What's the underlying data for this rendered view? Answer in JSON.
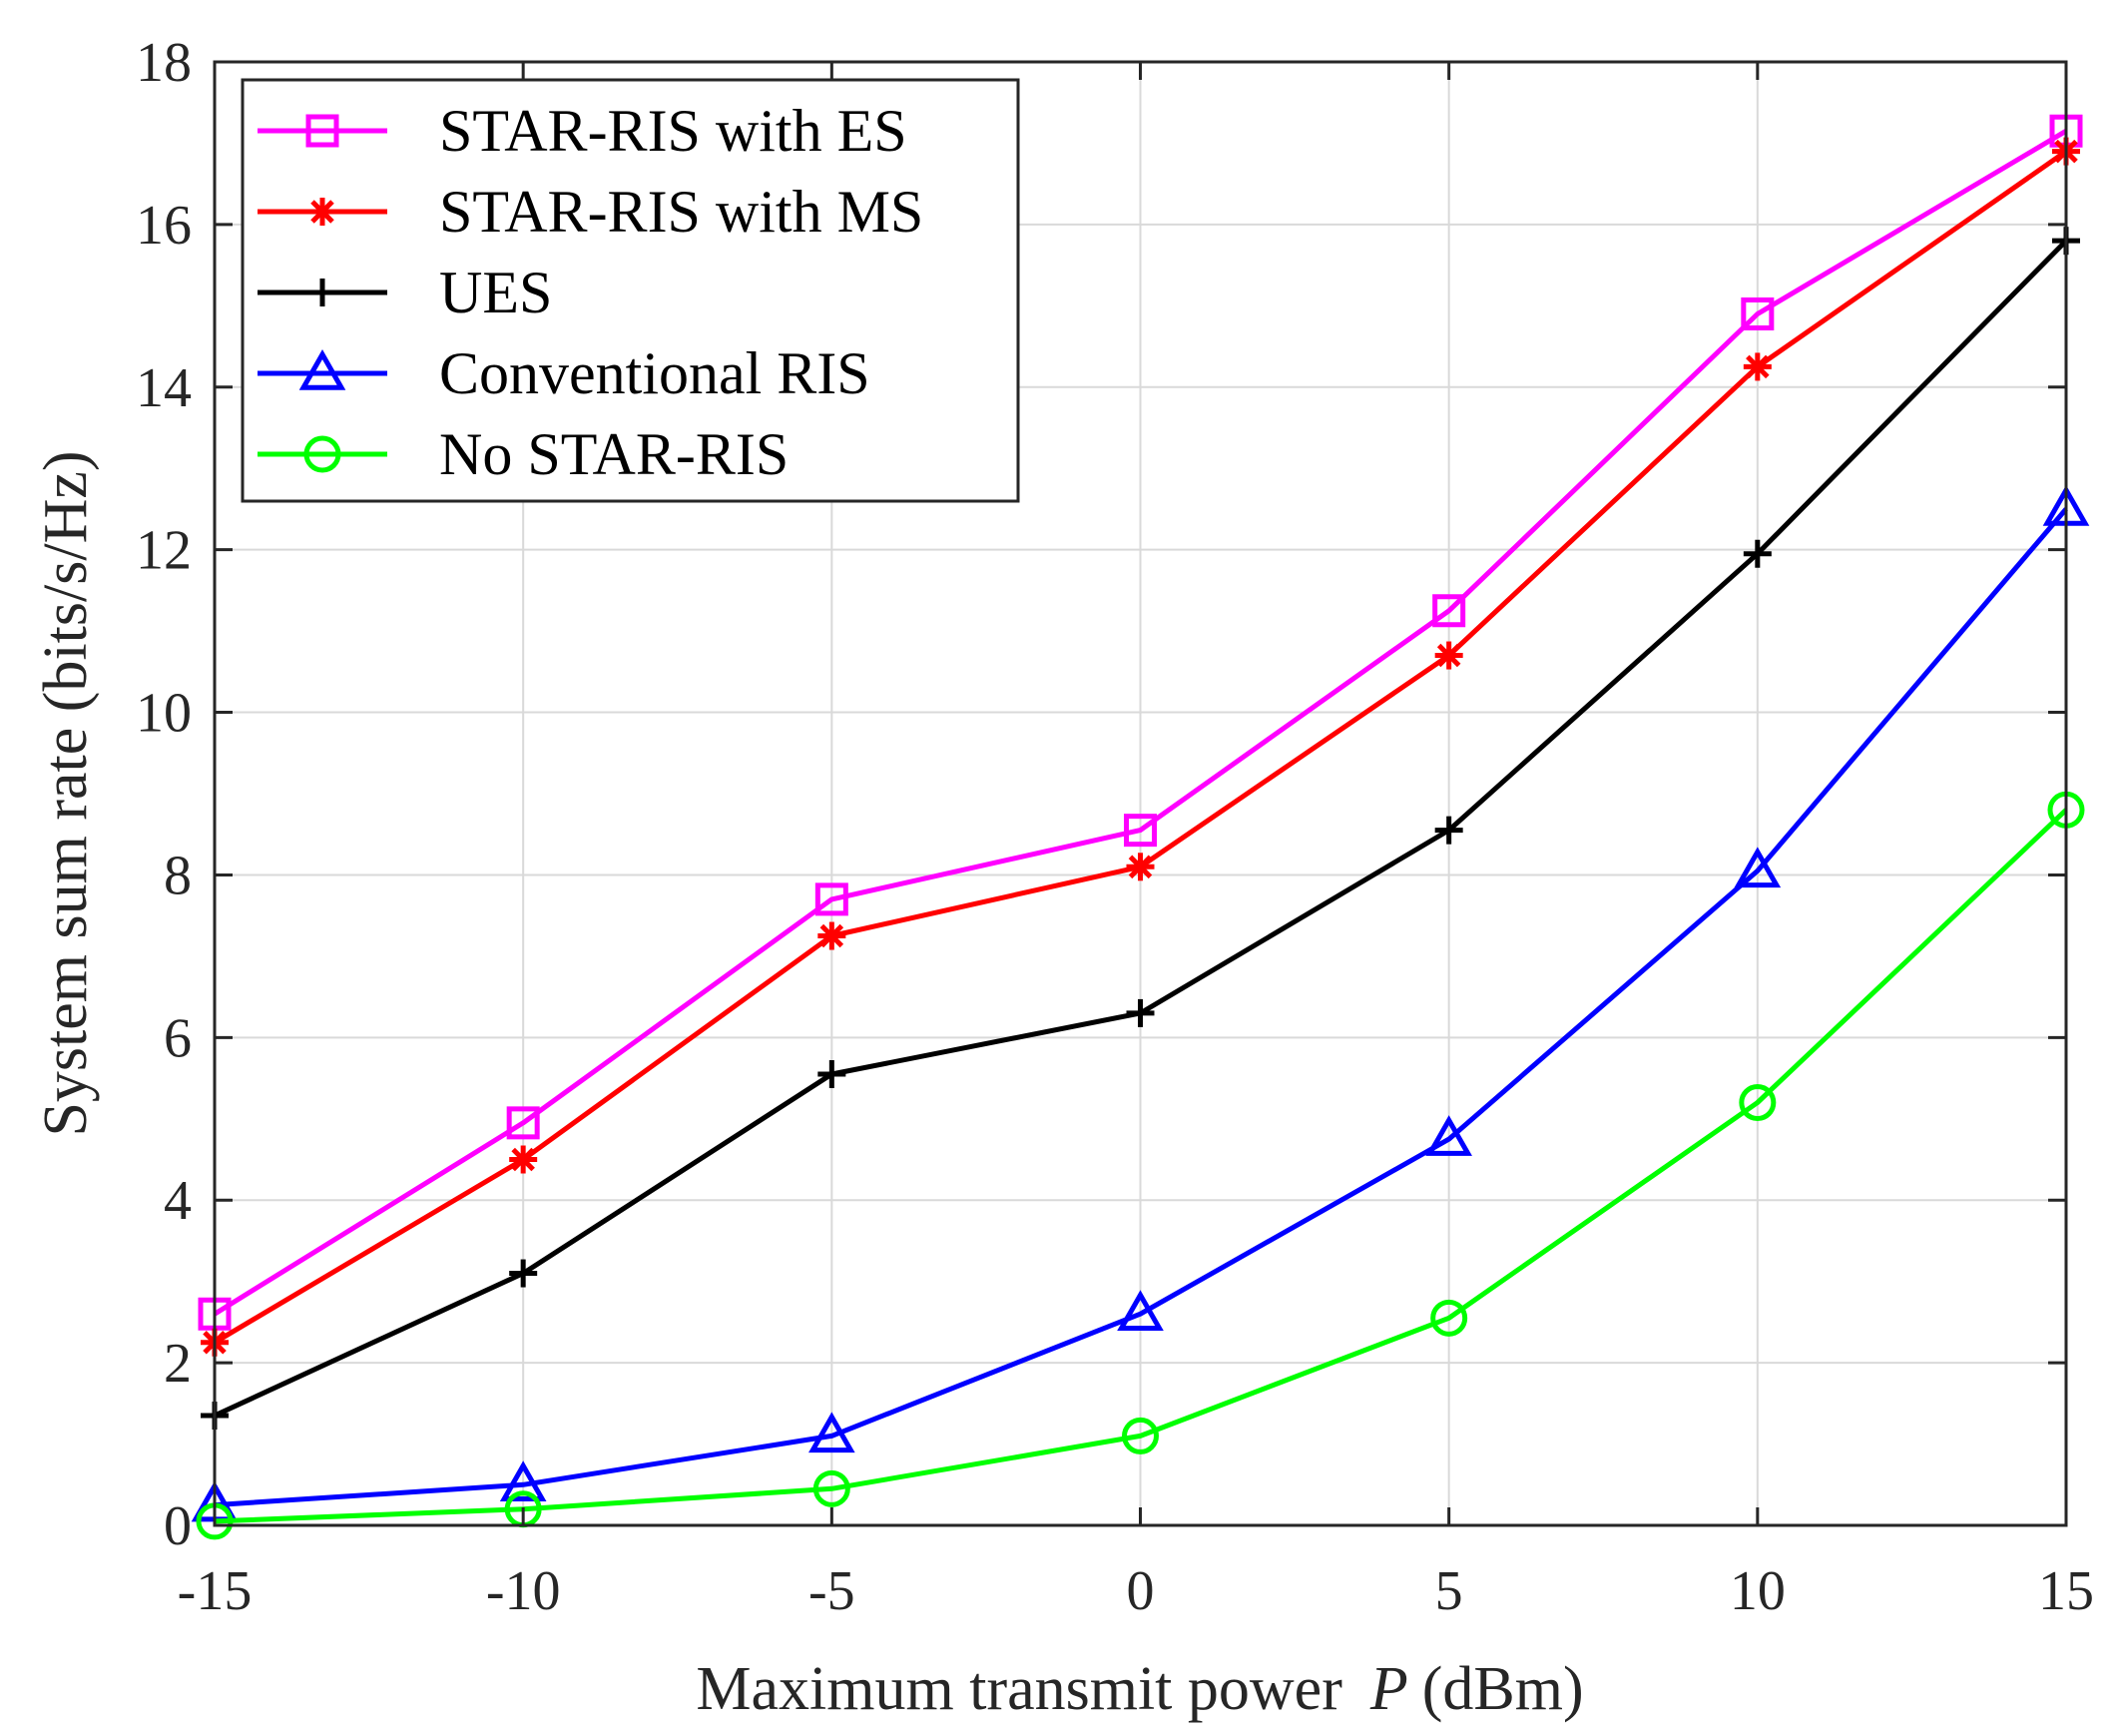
{
  "chart_data": {
    "type": "line",
    "title": "",
    "xlabel_main": "Maximum transmit power",
    "xlabel_var": "P",
    "xlabel_unit": "(dBm)",
    "ylabel": "System sum rate (bits/s/Hz)",
    "x": [
      -15,
      -10,
      -5,
      0,
      5,
      10,
      15
    ],
    "xlim": [
      -15,
      15
    ],
    "ylim": [
      0,
      18
    ],
    "xticks": [
      -15,
      -10,
      -5,
      0,
      5,
      10,
      15
    ],
    "yticks": [
      0,
      2,
      4,
      6,
      8,
      10,
      12,
      14,
      16,
      18
    ],
    "grid": true,
    "legend_position": "top-left",
    "series": [
      {
        "name": "STAR-RIS with ES",
        "color": "#ff00ff",
        "marker": "square",
        "values": [
          2.6,
          4.95,
          7.7,
          8.55,
          11.25,
          14.9,
          17.15
        ]
      },
      {
        "name": "STAR-RIS with MS",
        "color": "#ff0000",
        "marker": "asterisk",
        "values": [
          2.25,
          4.5,
          7.25,
          8.1,
          10.7,
          14.25,
          16.9
        ]
      },
      {
        "name": "UES",
        "color": "#000000",
        "marker": "plus",
        "values": [
          1.35,
          3.1,
          5.55,
          6.3,
          8.55,
          11.95,
          15.8
        ]
      },
      {
        "name": "Conventional RIS",
        "color": "#0000ff",
        "marker": "triangle",
        "values": [
          0.25,
          0.5,
          1.1,
          2.6,
          4.75,
          8.05,
          12.5
        ]
      },
      {
        "name": "No STAR-RIS",
        "color": "#00ff00",
        "marker": "circle",
        "values": [
          0.05,
          0.2,
          0.45,
          1.1,
          2.55,
          5.2,
          8.8
        ]
      }
    ]
  }
}
